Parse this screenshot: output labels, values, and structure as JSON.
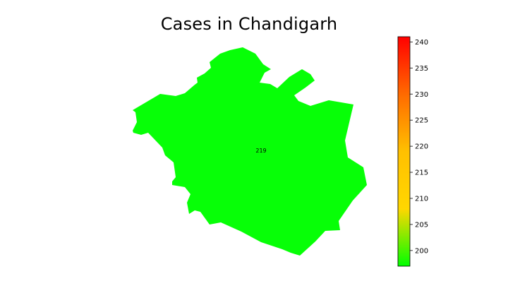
{
  "title": "Cases in Chandigarh",
  "chart_data": {
    "type": "choropleth",
    "title": "Cases in Chandigarh",
    "regions": [
      {
        "name": "Chandigarh",
        "value": 219,
        "label": "219",
        "fill": "#07ff07"
      }
    ],
    "colorbar": {
      "range": [
        197,
        241
      ],
      "ticks": [
        {
          "value": 200,
          "label": "200"
        },
        {
          "value": 205,
          "label": "205"
        },
        {
          "value": 210,
          "label": "210"
        },
        {
          "value": 215,
          "label": "215"
        },
        {
          "value": 220,
          "label": "220"
        },
        {
          "value": 225,
          "label": "225"
        },
        {
          "value": 230,
          "label": "230"
        },
        {
          "value": 235,
          "label": "235"
        },
        {
          "value": 240,
          "label": "240"
        }
      ],
      "colormap": [
        {
          "stop": 0.0,
          "color": "#00ff00"
        },
        {
          "stop": 0.25,
          "color": "#ffd700"
        },
        {
          "stop": 0.5,
          "color": "#ffc000"
        },
        {
          "stop": 0.75,
          "color": "#ff6a00"
        },
        {
          "stop": 1.0,
          "color": "#ff0000"
        }
      ]
    }
  }
}
